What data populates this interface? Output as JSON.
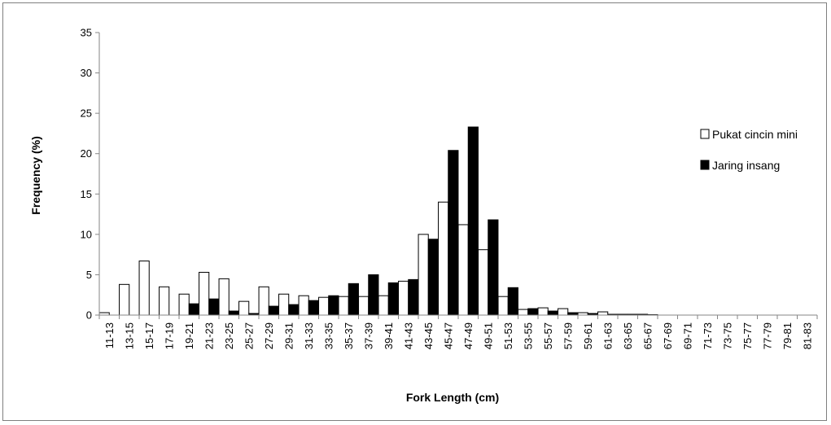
{
  "chart_data": {
    "type": "bar",
    "title": "",
    "xlabel": "Fork Length (cm)",
    "ylabel": "Frequency (%)",
    "ylim": [
      0,
      35
    ],
    "yticks": [
      "0",
      "5",
      "10",
      "15",
      "20",
      "25",
      "30",
      "35"
    ],
    "grid": false,
    "legend_position": "right",
    "categories": [
      "11-13",
      "13-15",
      "15-17",
      "17-19",
      "19-21",
      "21-23",
      "23-25",
      "25-27",
      "27-29",
      "29-31",
      "31-33",
      "33-35",
      "35-37",
      "37-39",
      "39-41",
      "41-43",
      "43-45",
      "45-47",
      "47-49",
      "49-51",
      "51-53",
      "53-55",
      "55-57",
      "57-59",
      "59-61",
      "61-63",
      "63-65",
      "65-67",
      "67-69",
      "69-71",
      "71-73",
      "73-75",
      "75-77",
      "77-79",
      "79-81",
      "81-83"
    ],
    "series": [
      {
        "name": "Pukat cincin mini",
        "color": "#ffffff",
        "values": [
          0.3,
          3.8,
          6.7,
          3.5,
          2.6,
          5.3,
          4.5,
          1.7,
          3.5,
          2.6,
          2.4,
          2.2,
          2.3,
          2.3,
          2.4,
          4.2,
          10.0,
          14.0,
          11.2,
          8.1,
          2.3,
          0.7,
          0.9,
          0.8,
          0.3,
          0.4,
          0.1,
          0.1,
          0,
          0,
          0,
          0,
          0,
          0,
          0,
          0
        ]
      },
      {
        "name": "Jaring insang",
        "color": "#000000",
        "values": [
          0,
          0,
          0,
          0,
          1.4,
          2.0,
          0.5,
          0.2,
          1.1,
          1.3,
          1.8,
          2.4,
          3.9,
          5.0,
          4.0,
          4.4,
          9.4,
          20.4,
          23.3,
          11.8,
          3.4,
          0.8,
          0.5,
          0.3,
          0.2,
          0.1,
          0.1,
          0.05,
          0,
          0,
          0,
          0,
          0,
          0,
          0,
          0
        ]
      }
    ]
  }
}
